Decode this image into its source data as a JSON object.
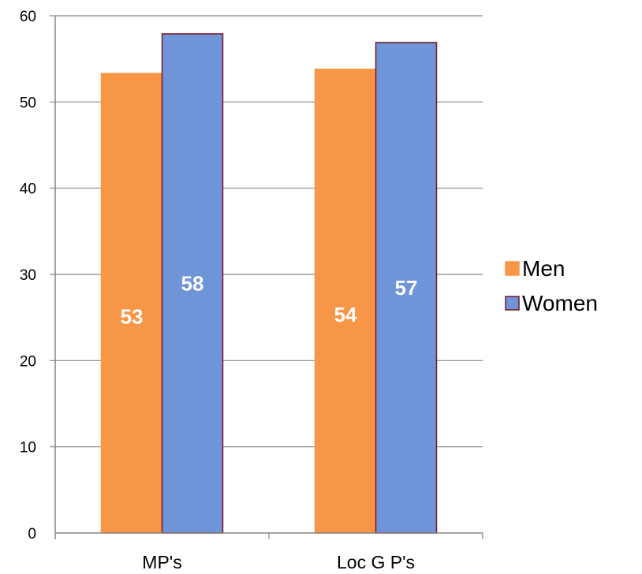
{
  "chart_data": {
    "type": "bar",
    "categories": [
      "MP's",
      "Loc G P's"
    ],
    "series": [
      {
        "name": "Men",
        "values": [
          53.3,
          53.8
        ],
        "labels": [
          "53",
          "54"
        ],
        "color": "#f79646",
        "stroke": "#f79646"
      },
      {
        "name": "Women",
        "values": [
          57.9,
          56.9
        ],
        "labels": [
          "58",
          "57"
        ],
        "color": "#7094d8",
        "stroke": "#7a1522"
      }
    ],
    "ylim": [
      0,
      60
    ],
    "yticks": [
      "0",
      "10",
      "20",
      "30",
      "40",
      "50",
      "60"
    ],
    "grid": true,
    "legend": "right",
    "title": "",
    "xlabel": "",
    "ylabel": ""
  }
}
